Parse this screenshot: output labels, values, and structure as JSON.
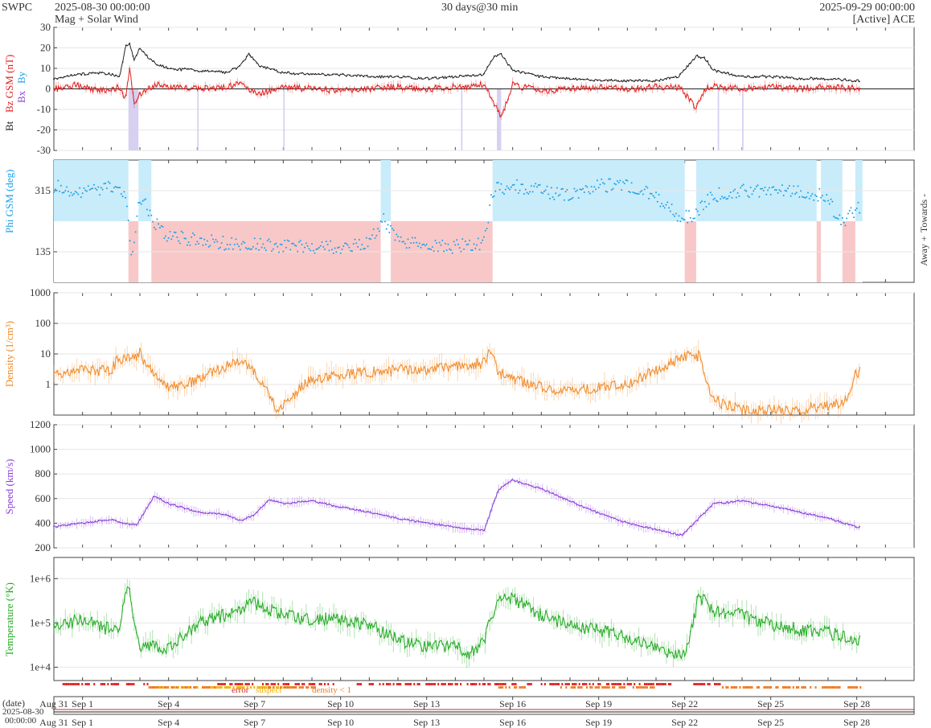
{
  "header": {
    "org": "SWPC",
    "start_time": "2025-08-30 00:00:00",
    "product": "Mag + Solar Wind",
    "span": "30 days@30 min",
    "end_time": "2025-09-29 00:00:00",
    "source": "[Active] ACE"
  },
  "colors": {
    "bt": "#222222",
    "bz": "#e02020",
    "bz_fill": "#f4a0a0",
    "phi": "#1ea0e6",
    "towards_fill": "#c8ecfa",
    "away_fill": "#f8c8c8",
    "density": "#f08a28",
    "speed": "#8a3fd8",
    "temperature": "#22aa22",
    "error": "#e02020",
    "suspect": "#f0b000",
    "density_lt1": "#f07820",
    "neg_bz_shade": "#d8d0f0"
  },
  "chart_data": [
    {
      "type": "line",
      "name": "mag",
      "ylabel_parts": [
        "Bt",
        "Bz GSM (nT)"
      ],
      "side_label_parts": [
        "Bx",
        "By"
      ],
      "ylim": [
        -30,
        30
      ],
      "yticks": [
        "30",
        "20",
        "10",
        "0",
        "-10",
        "-20",
        "-30"
      ],
      "x_days": [
        0,
        0.8,
        1.5,
        2.0,
        2.3,
        2.5,
        2.65,
        2.8,
        3.0,
        3.3,
        3.6,
        4.0,
        5.0,
        6.0,
        6.5,
        6.8,
        7.2,
        8.0,
        9.0,
        10.0,
        11.0,
        12.0,
        13.0,
        14.0,
        15.0,
        15.3,
        15.6,
        16.0,
        17.0,
        18.0,
        19.0,
        20.0,
        21.0,
        21.8,
        22.4,
        22.7,
        23.0,
        24.0,
        25.0,
        26.0,
        27.0,
        28.0
      ],
      "series": [
        {
          "key": "Bt",
          "values": [
            5,
            7,
            8,
            7,
            6,
            21,
            22,
            14,
            20,
            15,
            12,
            10,
            9,
            8,
            11,
            17,
            11,
            8,
            7,
            7,
            6,
            6,
            5,
            6,
            7,
            15,
            17,
            9,
            6,
            5,
            4,
            4,
            4,
            6,
            16,
            15,
            9,
            6,
            6,
            5,
            5,
            4
          ]
        },
        {
          "key": "Bz",
          "values": [
            0,
            2,
            -1,
            0,
            1,
            -5,
            12,
            -8,
            -3,
            0,
            2,
            1,
            0,
            1,
            3,
            0,
            -2,
            1,
            0,
            -1,
            0,
            1,
            0,
            1,
            2,
            -5,
            -14,
            2,
            -1,
            0,
            1,
            0,
            1,
            1,
            -9,
            0,
            1,
            0,
            1,
            0,
            1,
            0
          ]
        }
      ]
    },
    {
      "type": "scatter",
      "name": "phi",
      "ylabel": "Phi GSM (deg)",
      "yticks": [
        "315",
        "135"
      ],
      "side_labels": [
        "Towards -",
        "Away +"
      ],
      "toward_intervals": [
        [
          0,
          2.6
        ],
        [
          2.95,
          3.4
        ],
        [
          11.4,
          11.75
        ],
        [
          15.3,
          22.0
        ],
        [
          22.4,
          26.6
        ],
        [
          26.75,
          27.5
        ],
        [
          27.95,
          28.2
        ]
      ],
      "x_days": [
        0,
        1,
        2,
        2.5,
        2.7,
        3.0,
        3.3,
        3.5,
        4,
        6,
        8,
        10,
        11,
        11.5,
        12,
        14,
        15,
        15.3,
        16,
        17,
        18,
        19,
        20,
        21,
        21.8,
        22.3,
        23,
        24,
        25,
        26,
        26.5,
        27,
        27.3,
        27.6,
        28
      ],
      "values": [
        330,
        310,
        325,
        300,
        120,
        295,
        260,
        225,
        180,
        160,
        150,
        150,
        165,
        235,
        165,
        150,
        160,
        315,
        330,
        315,
        300,
        330,
        330,
        300,
        235,
        240,
        300,
        315,
        310,
        315,
        305,
        300,
        235,
        230,
        260
      ]
    },
    {
      "type": "line",
      "name": "density",
      "ylabel": "Density (1/cm³)",
      "scale": "log",
      "ylim": [
        0.1,
        1000
      ],
      "yticks": [
        "1000",
        "100",
        "10",
        "1"
      ],
      "x_days": [
        0,
        1,
        2,
        2.2,
        3,
        3.5,
        4,
        5,
        6,
        6.5,
        7,
        7.8,
        8,
        9,
        10,
        11,
        12,
        13,
        14,
        15,
        15.2,
        15.5,
        16,
        17,
        18,
        19,
        20,
        21,
        22,
        22.5,
        23,
        24,
        25,
        26,
        27,
        27.6,
        28
      ],
      "values": [
        2,
        3,
        3,
        6,
        10,
        2,
        0.7,
        1.5,
        4,
        6,
        3,
        0.15,
        0.25,
        1.5,
        2,
        2.5,
        3,
        3,
        4,
        5,
        15,
        2.5,
        1.5,
        0.8,
        0.6,
        0.8,
        1,
        3,
        8,
        9,
        0.3,
        0.15,
        0.15,
        0.15,
        0.2,
        0.3,
        2.5
      ]
    },
    {
      "type": "line",
      "name": "speed",
      "ylabel": "Speed (km/s)",
      "ylim": [
        200,
        1200
      ],
      "yticks": [
        "1200",
        "1000",
        "800",
        "600",
        "400",
        "200"
      ],
      "x_days": [
        0,
        1,
        2,
        2.5,
        2.9,
        3.5,
        4,
        5,
        6,
        6.5,
        7,
        7.5,
        8,
        9,
        10,
        11,
        12,
        13,
        14,
        15,
        15.5,
        16,
        17,
        18,
        19,
        20,
        21,
        21.9,
        22.5,
        23,
        24,
        25,
        26,
        27,
        28
      ],
      "values": [
        370,
        400,
        430,
        395,
        390,
        620,
        560,
        490,
        470,
        420,
        470,
        590,
        560,
        580,
        530,
        490,
        440,
        400,
        370,
        340,
        670,
        750,
        680,
        580,
        480,
        400,
        350,
        300,
        440,
        560,
        580,
        540,
        490,
        440,
        370
      ]
    },
    {
      "type": "line",
      "name": "temperature",
      "ylabel": "Temperature (°K)",
      "scale": "log",
      "ylim": [
        5000,
        3000000
      ],
      "yticks": [
        "1e+6",
        "1e+5",
        "1e+4"
      ],
      "x_days": [
        0,
        1,
        2,
        2.2,
        2.6,
        3,
        3.5,
        4,
        5,
        6,
        7,
        8,
        9,
        10,
        11,
        12,
        13,
        14,
        14.5,
        15,
        15.5,
        16,
        17,
        18,
        19,
        20,
        21,
        22,
        22.5,
        23,
        24,
        25,
        26,
        27,
        28
      ],
      "values": [
        80000,
        120000,
        70000,
        60000,
        700000,
        25000,
        30000,
        25000,
        100000,
        150000,
        300000,
        150000,
        120000,
        120000,
        90000,
        40000,
        30000,
        30000,
        20000,
        40000,
        400000,
        350000,
        150000,
        90000,
        70000,
        50000,
        25000,
        20000,
        400000,
        200000,
        150000,
        90000,
        70000,
        60000,
        40000
      ]
    },
    {
      "type": "bar",
      "name": "quality",
      "legend": [
        "error",
        "suspect",
        "density < 1"
      ]
    }
  ],
  "x_axis": {
    "date_label": "(date)",
    "start_label_line1": "2025-08-30",
    "start_label_line2": "00:00:00",
    "ticks": [
      {
        "day": 1,
        "label": "Aug 31"
      },
      {
        "day": 2,
        "label": "Sep 1"
      },
      {
        "day": 5,
        "label": "Sep 4"
      },
      {
        "day": 8,
        "label": "Sep 7"
      },
      {
        "day": 11,
        "label": "Sep 10"
      },
      {
        "day": 14,
        "label": "Sep 13"
      },
      {
        "day": 17,
        "label": "Sep 16"
      },
      {
        "day": 20,
        "label": "Sep 19"
      },
      {
        "day": 23,
        "label": "Sep 22"
      },
      {
        "day": 26,
        "label": "Sep 25"
      },
      {
        "day": 29,
        "label": "Sep 28"
      }
    ]
  }
}
